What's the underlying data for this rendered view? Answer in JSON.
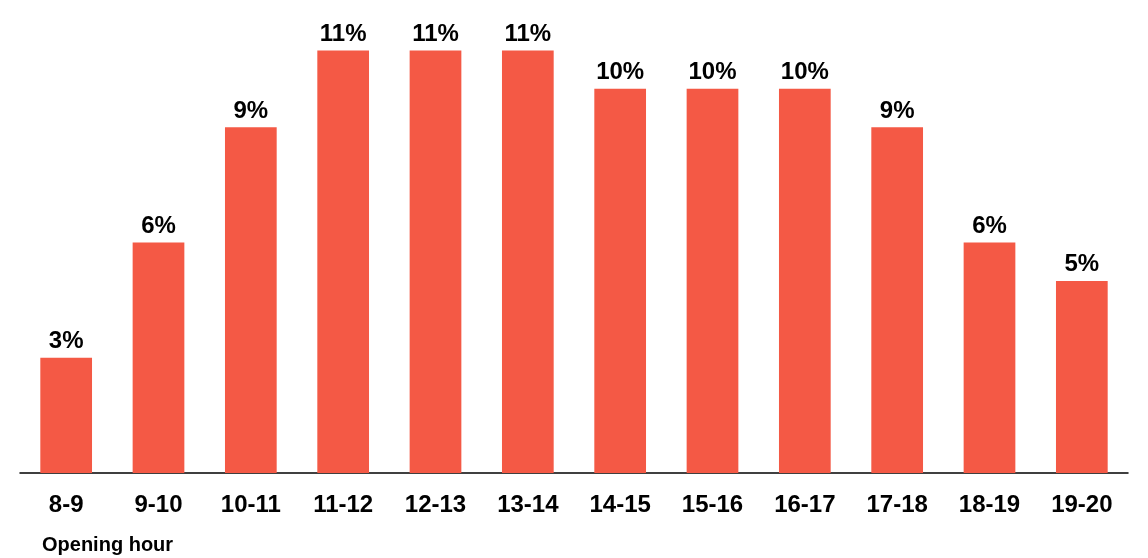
{
  "chart_data": {
    "type": "bar",
    "xlabel": "Opening hour",
    "categories": [
      "8-9",
      "9-10",
      "10-11",
      "11-12",
      "12-13",
      "13-14",
      "14-15",
      "15-16",
      "16-17",
      "17-18",
      "18-19",
      "19-20"
    ],
    "values": [
      3,
      6,
      9,
      11,
      11,
      11,
      10,
      10,
      10,
      9,
      6,
      5
    ],
    "value_labels": [
      "3%",
      "6%",
      "9%",
      "11%",
      "11%",
      "11%",
      "10%",
      "10%",
      "10%",
      "9%",
      "6%",
      "5%"
    ],
    "color": "#f45945"
  }
}
